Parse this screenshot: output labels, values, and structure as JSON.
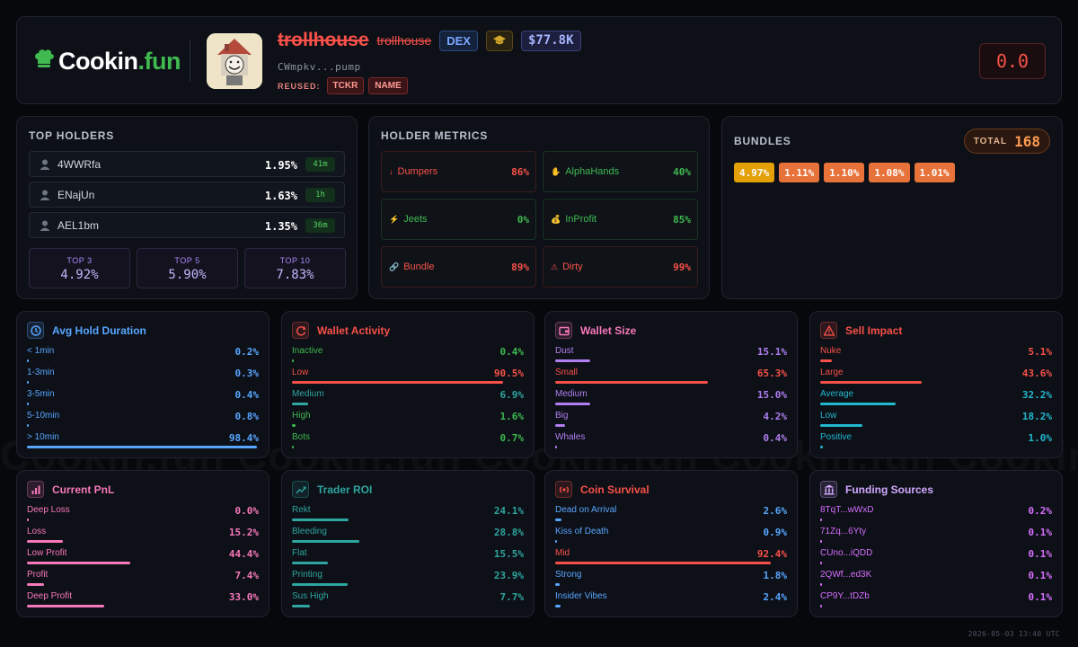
{
  "watermark": "Cookin.fun   Cookin.fun   Cookin.fun   Cookin.fun   Cookin.fun   Cookin.fun",
  "brand": {
    "prefix": "Cookin",
    "suffix": ".fun"
  },
  "token": {
    "name": "trollhouse",
    "ticker": "trollhouse",
    "dex_badge": "DEX",
    "market_cap": "$77.8K",
    "address": "CWmpkv...pump",
    "reused_label": "REUSED:",
    "reused": [
      "TCKR",
      "NAME"
    ],
    "score": "0.0"
  },
  "top_holders": {
    "title": "TOP HOLDERS",
    "holders": [
      {
        "name": "4WWRfa",
        "pct": "1.95%",
        "age": "41m"
      },
      {
        "name": "ENajUn",
        "pct": "1.63%",
        "age": "1h"
      },
      {
        "name": "AEL1bm",
        "pct": "1.35%",
        "age": "36m"
      }
    ],
    "summary": [
      {
        "label": "TOP 3",
        "value": "4.92%"
      },
      {
        "label": "TOP 5",
        "value": "5.90%"
      },
      {
        "label": "TOP 10",
        "value": "7.83%"
      }
    ]
  },
  "holder_metrics": {
    "title": "HOLDER METRICS",
    "items": [
      {
        "label": "Dumpers",
        "value": "86%",
        "tone": "red",
        "icon": "↓"
      },
      {
        "label": "AlphaHands",
        "value": "40%",
        "tone": "green",
        "icon": "✋"
      },
      {
        "label": "Jeets",
        "value": "0%",
        "tone": "green",
        "icon": "⚡"
      },
      {
        "label": "InProfit",
        "value": "85%",
        "tone": "green",
        "icon": "💰"
      },
      {
        "label": "Bundle",
        "value": "89%",
        "tone": "red",
        "icon": "🔗"
      },
      {
        "label": "Dirty",
        "value": "99%",
        "tone": "red",
        "icon": "⚠"
      }
    ]
  },
  "bundles": {
    "title": "BUNDLES",
    "total_label": "TOTAL",
    "total": "168",
    "chips": [
      {
        "value": "4.97%",
        "color": "#e3a008"
      },
      {
        "value": "1.11%",
        "color": "#e8733a"
      },
      {
        "value": "1.10%",
        "color": "#e8733a"
      },
      {
        "value": "1.08%",
        "color": "#e8733a"
      },
      {
        "value": "1.01%",
        "color": "#e8733a"
      }
    ]
  },
  "cards": [
    {
      "key": "avg-hold-duration",
      "title": "Avg Hold Duration",
      "icon": "clock-icon",
      "accent": "#58a6ff",
      "rows": [
        {
          "label": "< 1min",
          "value": "0.2%",
          "pct": 0.2,
          "color": "#58a6ff"
        },
        {
          "label": "1-3min",
          "value": "0.3%",
          "pct": 0.3,
          "color": "#58a6ff"
        },
        {
          "label": "3-5min",
          "value": "0.4%",
          "pct": 0.4,
          "color": "#58a6ff"
        },
        {
          "label": "5-10min",
          "value": "0.8%",
          "pct": 0.8,
          "color": "#58a6ff"
        },
        {
          "label": "> 10min",
          "value": "98.4%",
          "pct": 98.4,
          "color": "#58a6ff"
        }
      ]
    },
    {
      "key": "wallet-activity",
      "title": "Wallet Activity",
      "icon": "refresh-icon",
      "accent": "#f85149",
      "rows": [
        {
          "label": "Inactive",
          "value": "0.4%",
          "pct": 0.4,
          "color": "#3fb950"
        },
        {
          "label": "Low",
          "value": "90.5%",
          "pct": 90.5,
          "color": "#f85149"
        },
        {
          "label": "Medium",
          "value": "6.9%",
          "pct": 6.9,
          "color": "#2ea5a0"
        },
        {
          "label": "High",
          "value": "1.6%",
          "pct": 1.6,
          "color": "#3fb950"
        },
        {
          "label": "Bots",
          "value": "0.7%",
          "pct": 0.7,
          "color": "#3fb950"
        }
      ]
    },
    {
      "key": "wallet-size",
      "title": "Wallet Size",
      "icon": "wallet-icon",
      "accent": "#f778ba",
      "rows": [
        {
          "label": "Dust",
          "value": "15.1%",
          "pct": 15.1,
          "color": "#b07ef0"
        },
        {
          "label": "Small",
          "value": "65.3%",
          "pct": 65.3,
          "color": "#f85149"
        },
        {
          "label": "Medium",
          "value": "15.0%",
          "pct": 15.0,
          "color": "#b07ef0"
        },
        {
          "label": "Big",
          "value": "4.2%",
          "pct": 4.2,
          "color": "#b07ef0"
        },
        {
          "label": "Whales",
          "value": "0.4%",
          "pct": 0.4,
          "color": "#b07ef0"
        }
      ]
    },
    {
      "key": "sell-impact",
      "title": "Sell Impact",
      "icon": "warning-icon",
      "accent": "#f85149",
      "rows": [
        {
          "label": "Nuke",
          "value": "5.1%",
          "pct": 5.1,
          "color": "#f85149"
        },
        {
          "label": "Large",
          "value": "43.6%",
          "pct": 43.6,
          "color": "#f85149"
        },
        {
          "label": "Average",
          "value": "32.2%",
          "pct": 32.2,
          "color": "#22b8cf"
        },
        {
          "label": "Low",
          "value": "18.2%",
          "pct": 18.2,
          "color": "#22b8cf"
        },
        {
          "label": "Positive",
          "value": "1.0%",
          "pct": 1.0,
          "color": "#22b8cf"
        }
      ]
    },
    {
      "key": "current-pnl",
      "title": "Current PnL",
      "icon": "bar-chart-icon",
      "accent": "#f778ba",
      "rows": [
        {
          "label": "Deep Loss",
          "value": "0.0%",
          "pct": 0.0,
          "color": "#f778ba"
        },
        {
          "label": "Loss",
          "value": "15.2%",
          "pct": 15.2,
          "color": "#f778ba"
        },
        {
          "label": "Low Profit",
          "value": "44.4%",
          "pct": 44.4,
          "color": "#f778ba"
        },
        {
          "label": "Profit",
          "value": "7.4%",
          "pct": 7.4,
          "color": "#f778ba"
        },
        {
          "label": "Deep Profit",
          "value": "33.0%",
          "pct": 33.0,
          "color": "#f778ba"
        }
      ]
    },
    {
      "key": "trader-roi",
      "title": "Trader ROI",
      "icon": "trend-up-icon",
      "accent": "#2ea5a0",
      "rows": [
        {
          "label": "Rekt",
          "value": "24.1%",
          "pct": 24.1,
          "color": "#2ea5a0"
        },
        {
          "label": "Bleeding",
          "value": "28.8%",
          "pct": 28.8,
          "color": "#2ea5a0"
        },
        {
          "label": "Flat",
          "value": "15.5%",
          "pct": 15.5,
          "color": "#2ea5a0"
        },
        {
          "label": "Printing",
          "value": "23.9%",
          "pct": 23.9,
          "color": "#2ea5a0"
        },
        {
          "label": "Sus High",
          "value": "7.7%",
          "pct": 7.7,
          "color": "#2ea5a0"
        }
      ]
    },
    {
      "key": "coin-survival",
      "title": "Coin Survival",
      "icon": "radio-icon",
      "accent": "#f85149",
      "rows": [
        {
          "label": "Dead on Arrival",
          "value": "2.6%",
          "pct": 2.6,
          "color": "#58a6ff"
        },
        {
          "label": "Kiss of Death",
          "value": "0.9%",
          "pct": 0.9,
          "color": "#58a6ff"
        },
        {
          "label": "Mid",
          "value": "92.4%",
          "pct": 92.4,
          "color": "#f85149"
        },
        {
          "label": "Strong",
          "value": "1.8%",
          "pct": 1.8,
          "color": "#58a6ff"
        },
        {
          "label": "Insider Vibes",
          "value": "2.4%",
          "pct": 2.4,
          "color": "#58a6ff"
        }
      ]
    },
    {
      "key": "funding-sources",
      "title": "Funding Sources",
      "icon": "bank-icon",
      "accent": "#d2a8ff",
      "rows": [
        {
          "label": "8TqT...wWxD",
          "value": "0.2%",
          "pct": 0.2,
          "color": "#d66efd"
        },
        {
          "label": "71Zq...6Yty",
          "value": "0.1%",
          "pct": 0.1,
          "color": "#d66efd"
        },
        {
          "label": "CUno...iQDD",
          "value": "0.1%",
          "pct": 0.1,
          "color": "#d66efd"
        },
        {
          "label": "2QWf...ed3K",
          "value": "0.1%",
          "pct": 0.1,
          "color": "#d66efd"
        },
        {
          "label": "CP9Y...tDZb",
          "value": "0.1%",
          "pct": 0.1,
          "color": "#d66efd"
        }
      ]
    }
  ],
  "footer": {
    "timestamp": "2026-05-03 13:40 UTC"
  }
}
